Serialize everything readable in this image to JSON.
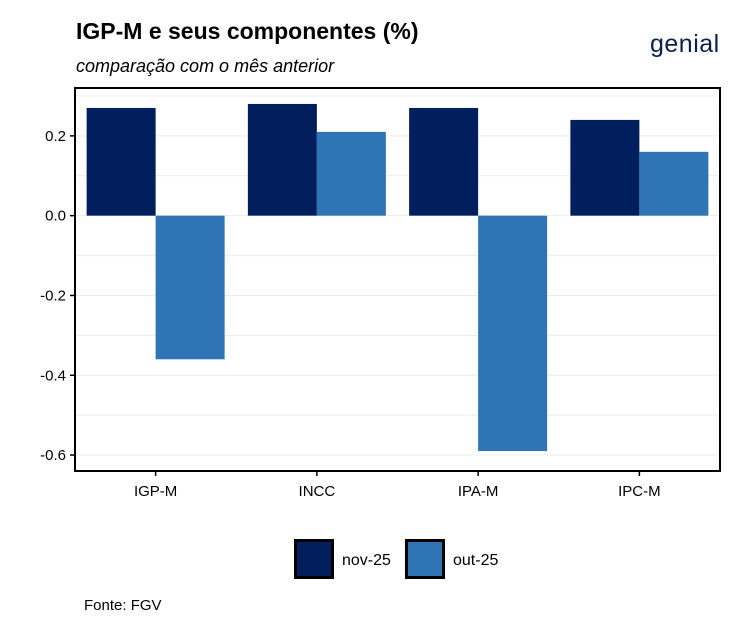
{
  "header": {
    "title": "IGP-M e seus componentes (%)",
    "subtitle": "comparação com o mês anterior",
    "logo_text": "genial"
  },
  "footer": {
    "source": "Fonte: FGV"
  },
  "colors": {
    "nov-25": "#001f5c",
    "out-25": "#2f74b5",
    "grid": "#ececec"
  },
  "chart_data": {
    "type": "bar",
    "categories": [
      "IGP-M",
      "INCC",
      "IPA-M",
      "IPC-M"
    ],
    "series": [
      {
        "name": "nov-25",
        "values": [
          0.27,
          0.28,
          0.27,
          0.24
        ]
      },
      {
        "name": "out-25",
        "values": [
          -0.36,
          0.21,
          -0.59,
          0.16
        ]
      }
    ],
    "yticks": [
      0.2,
      0.0,
      -0.2,
      -0.4,
      -0.6
    ],
    "ytick_labels": [
      "0.2",
      "0.0",
      "-0.2",
      "-0.4",
      "-0.6"
    ],
    "ylim": [
      -0.64,
      0.32
    ],
    "grid": true,
    "legend_position": "bottom"
  }
}
